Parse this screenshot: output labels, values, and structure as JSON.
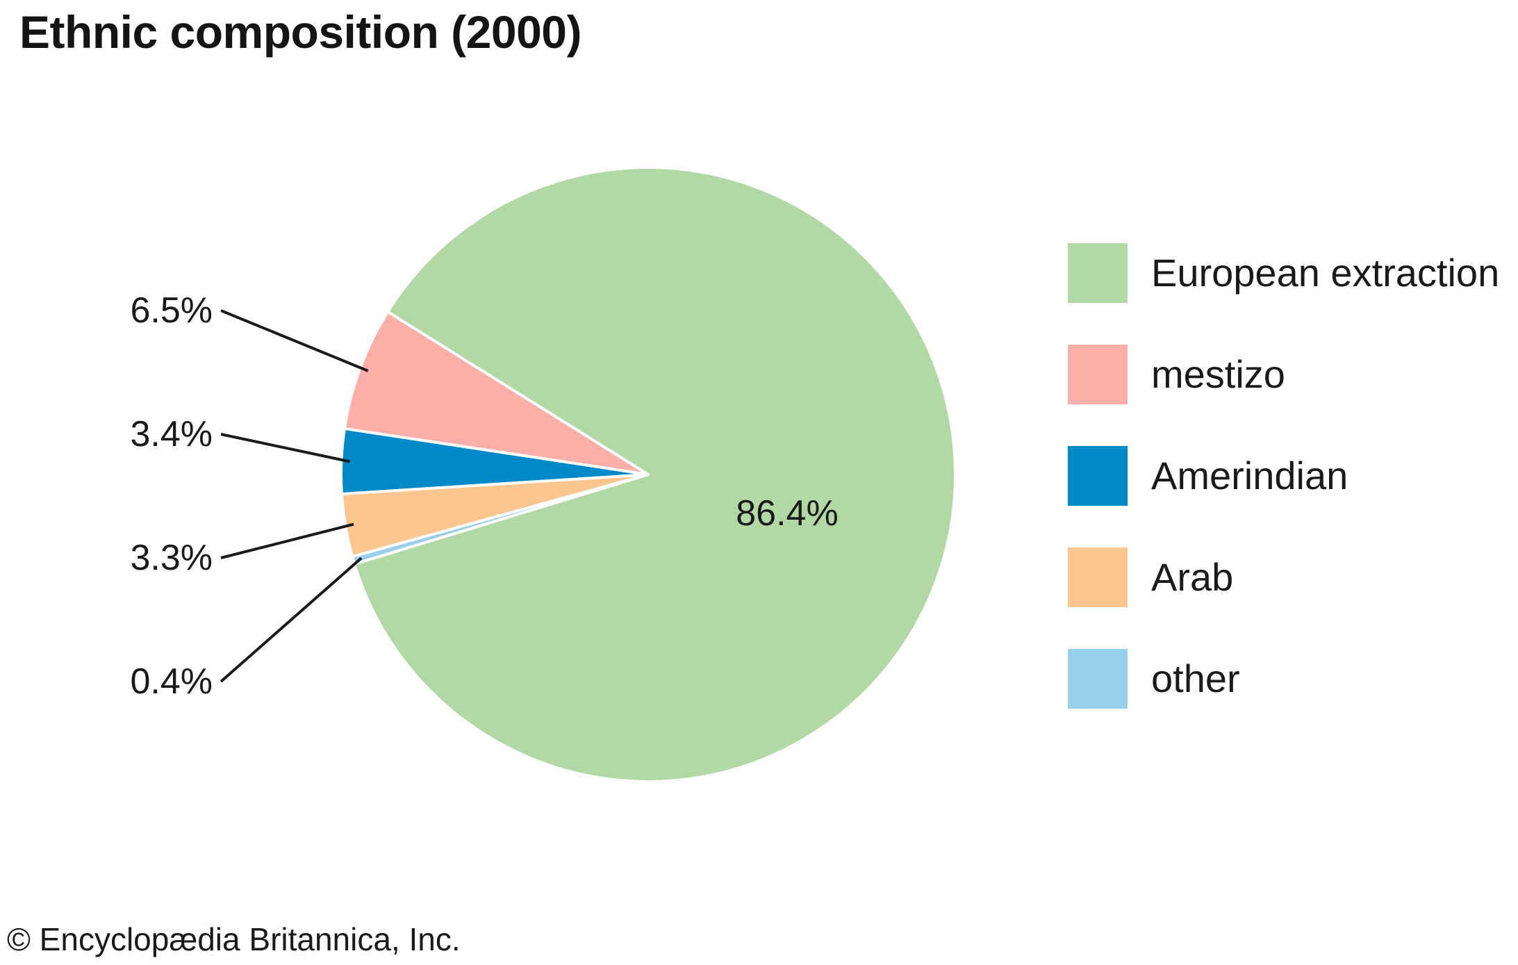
{
  "chart_data": {
    "type": "pie",
    "title": "Ethnic composition (2000)",
    "slices": [
      {
        "name": "European extraction",
        "value": 86.4,
        "label": "86.4%",
        "color": "#b2d8a6"
      },
      {
        "name": "mestizo",
        "value": 6.5,
        "label": "6.5%",
        "color": "#fcaea9"
      },
      {
        "name": "Amerindian",
        "value": 3.4,
        "label": "3.4%",
        "color": "#0089c8"
      },
      {
        "name": "Arab",
        "value": 3.3,
        "label": "3.3%",
        "color": "#fcc690"
      },
      {
        "name": "other",
        "value": 0.4,
        "label": "0.4%",
        "color": "#99cfeb"
      }
    ],
    "legend_position": "right"
  },
  "credit": "© Encyclopædia Britannica, Inc."
}
